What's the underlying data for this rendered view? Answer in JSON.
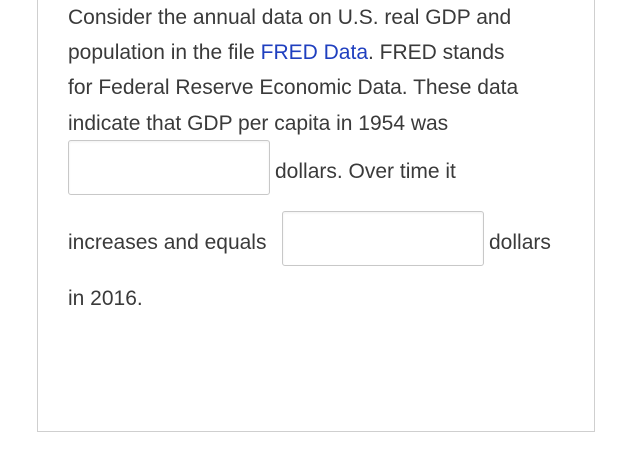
{
  "question": {
    "line1": "Consider the annual data on U.S. real GDP and",
    "line2_prefix": "population in the file ",
    "link_text": "FRED Data",
    "line2_suffix": ". FRED stands",
    "line3": "for Federal Reserve Economic Data. These data",
    "line4": "indicate that GDP per capita in 1954 was",
    "after_box1": "dollars. Over time it",
    "before_box2": "increases and equals",
    "after_box2": "dollars",
    "line_final": "in 2016."
  },
  "inputs": {
    "gdp_1954_value": "",
    "gdp_2016_value": ""
  },
  "colors": {
    "text": "#3a3a3a",
    "link": "#1f3fbf",
    "border": "#cfcfcf"
  }
}
